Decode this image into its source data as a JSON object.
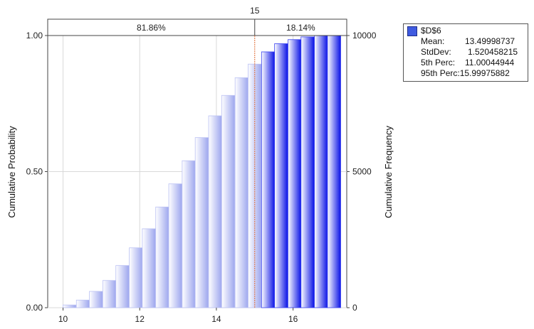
{
  "chart_data": {
    "type": "bar",
    "title": "",
    "xlabel": "",
    "ylabel": "Cumulative Probability",
    "y2label": "Cumulative Frequency",
    "xlim": [
      9.6,
      17.4
    ],
    "ylim": [
      0,
      1
    ],
    "y2lim": [
      0,
      10000
    ],
    "x_ticks": [
      "10",
      "12",
      "14",
      "16"
    ],
    "y_ticks": [
      "0.00",
      "0.50",
      "1.00"
    ],
    "y2_ticks": [
      "0",
      "5000",
      "10000"
    ],
    "grid": true,
    "bin_width": 0.345,
    "bins": [
      {
        "x": 10.17,
        "value": 0.01
      },
      {
        "x": 10.52,
        "value": 0.028
      },
      {
        "x": 10.86,
        "value": 0.06
      },
      {
        "x": 11.21,
        "value": 0.1
      },
      {
        "x": 11.55,
        "value": 0.155
      },
      {
        "x": 11.9,
        "value": 0.22
      },
      {
        "x": 12.24,
        "value": 0.29
      },
      {
        "x": 12.59,
        "value": 0.37
      },
      {
        "x": 12.93,
        "value": 0.455
      },
      {
        "x": 13.28,
        "value": 0.54
      },
      {
        "x": 13.62,
        "value": 0.625
      },
      {
        "x": 13.97,
        "value": 0.705
      },
      {
        "x": 14.31,
        "value": 0.78
      },
      {
        "x": 14.66,
        "value": 0.845
      },
      {
        "x": 15.0,
        "value": 0.895
      },
      {
        "x": 15.35,
        "value": 0.94
      },
      {
        "x": 15.69,
        "value": 0.97
      },
      {
        "x": 16.04,
        "value": 0.985
      },
      {
        "x": 16.38,
        "value": 0.995
      },
      {
        "x": 16.73,
        "value": 1.0
      },
      {
        "x": 17.07,
        "value": 1.0
      }
    ],
    "cutoff": {
      "x": 15,
      "label": "15",
      "left_pct": "81.86%",
      "right_pct": "18.14%"
    },
    "colors": {
      "left": "#9da6ee",
      "right": "#0a12e6",
      "cutoff_line": "#e0703a"
    }
  },
  "legend": {
    "series": "$D$6",
    "swatch_color": "#3f5be0",
    "stats": [
      {
        "label": "Mean:",
        "value": "13.49998737"
      },
      {
        "label": "StdDev:",
        "value": "1.520458215"
      },
      {
        "label": "5th Perc:",
        "value": "11.00044944"
      },
      {
        "label": "95th Perc:",
        "value": "15.99975882"
      }
    ]
  }
}
